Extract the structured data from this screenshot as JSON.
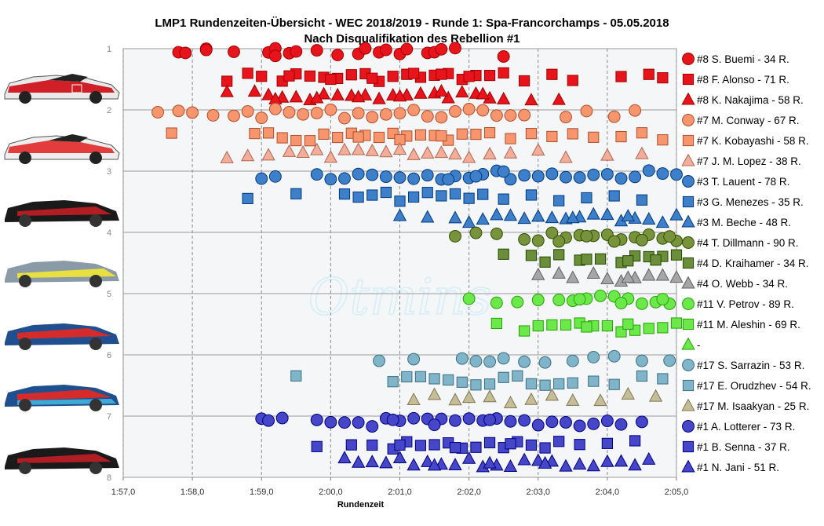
{
  "chart_data": {
    "type": "scatter",
    "title": "LMP1 Rundenzeiten-Übersicht  - WEC 2018/2019  - Runde 1: Spa-Francorchamps  - 05.05.2018",
    "subtitle": "Nach Disqualifikation  des Rebellion  #1",
    "xlabel": "Rundenzeit",
    "ylabel": "",
    "xlim": [
      117,
      125
    ],
    "ylim": [
      1,
      8
    ],
    "y_inverted": true,
    "grid": true,
    "watermark": "Otmins",
    "x_ticks": [
      "1:57,0",
      "1:58,0",
      "1:59,0",
      "2:00,0",
      "2:01,0",
      "2:02,0",
      "2:03,0",
      "2:04,0",
      "2:05,0"
    ],
    "y_ticks": [
      "1",
      "2",
      "3",
      "4",
      "5",
      "6",
      "7",
      "8"
    ],
    "series": [
      {
        "name": "#8 S. Buemi - 34 R.",
        "marker": "circle",
        "color": "#e8141b",
        "y": 1.06,
        "x": [
          117.8,
          117.9,
          118.2,
          118.2,
          118.6,
          119.1,
          119.2,
          119.2,
          119.4,
          119.5,
          119.8,
          120.1,
          120.4,
          120.5,
          120.7,
          120.8,
          121.0,
          121.1,
          121.4,
          121.5,
          121.6,
          121.8,
          122.5
        ]
      },
      {
        "name": "#8 F. Alonso - 71 R.",
        "marker": "square",
        "color": "#e8141b",
        "y": 1.46,
        "x": [
          118.5,
          118.8,
          119.0,
          119.3,
          119.5,
          119.7,
          119.9,
          120.1,
          120.3,
          120.5,
          120.7,
          120.9,
          121.1,
          121.3,
          121.5,
          121.7,
          121.9,
          122.1,
          122.3,
          122.5,
          122.8,
          123.2,
          123.5,
          124.2,
          124.6,
          124.8,
          119.4,
          120.0,
          120.6,
          121.2,
          121.6,
          122.0
        ]
      },
      {
        "name": "#8 K. Nakajima - 58 R.",
        "marker": "triangle",
        "color": "#e8141b",
        "y": 1.77,
        "x": [
          118.5,
          118.9,
          119.1,
          119.3,
          119.5,
          119.7,
          119.9,
          120.1,
          120.3,
          120.5,
          120.7,
          120.9,
          121.1,
          121.3,
          121.5,
          121.7,
          121.9,
          122.1,
          122.3,
          122.5,
          122.9,
          123.3,
          119.2,
          119.8,
          120.4,
          121.0,
          121.6,
          122.2
        ]
      },
      {
        "name": "#7 M. Conway - 67 R.",
        "marker": "circle",
        "color": "#f7956f",
        "y": 2.06,
        "x": [
          117.5,
          117.8,
          118.0,
          118.3,
          118.6,
          118.8,
          119.0,
          119.2,
          119.4,
          119.6,
          119.8,
          120.0,
          120.2,
          120.4,
          120.6,
          120.8,
          121.0,
          121.2,
          121.4,
          121.6,
          121.8,
          122.0,
          122.2,
          122.4,
          122.6,
          122.8,
          123.4,
          123.7,
          124.1,
          124.4
        ]
      },
      {
        "name": "#7 K. Kobayashi - 58 R.",
        "marker": "square",
        "color": "#f7956f",
        "y": 2.45,
        "x": [
          117.7,
          118.9,
          119.1,
          119.3,
          119.5,
          119.7,
          119.9,
          120.1,
          120.3,
          120.5,
          120.7,
          120.9,
          121.1,
          121.3,
          121.5,
          121.7,
          121.9,
          122.1,
          122.3,
          122.6,
          122.9,
          123.2,
          123.5,
          123.8,
          124.2,
          124.5,
          124.8,
          120.4,
          121.0,
          121.6
        ]
      },
      {
        "name": "#7 J. M. Lopez - 38 R.",
        "marker": "triangle",
        "color": "#f4ad98",
        "y": 2.72,
        "x": [
          118.5,
          118.8,
          119.1,
          119.4,
          119.6,
          119.8,
          120.0,
          120.2,
          120.4,
          120.6,
          120.8,
          121.0,
          121.2,
          121.4,
          121.6,
          121.8,
          122.0,
          122.3,
          122.6,
          123.0,
          123.4,
          124.0,
          124.5
        ]
      },
      {
        "name": "#3 T. Lauent - 78 R.",
        "marker": "circle",
        "color": "#3d7fc8",
        "y": 3.06,
        "x": [
          119.0,
          119.2,
          119.8,
          120.0,
          120.2,
          120.4,
          120.6,
          120.8,
          121.0,
          121.2,
          121.4,
          121.6,
          121.8,
          122.0,
          122.2,
          122.4,
          122.6,
          122.8,
          123.0,
          123.2,
          123.4,
          123.6,
          123.8,
          124.0,
          124.2,
          124.4,
          124.6,
          124.8,
          125.0,
          121.7,
          122.1,
          122.5
        ]
      },
      {
        "name": "#3 G. Menezes - 35 R.",
        "marker": "square",
        "color": "#3d7fc8",
        "y": 3.42,
        "x": [
          118.8,
          119.5,
          120.2,
          120.4,
          120.6,
          120.8,
          121.0,
          121.2,
          121.4,
          121.6,
          121.8,
          122.0,
          122.2,
          122.5,
          122.9,
          123.3,
          123.7,
          124.1,
          124.5
        ]
      },
      {
        "name": "#3 M. Beche - 48 R.",
        "marker": "triangle",
        "color": "#3d7fc8",
        "y": 3.78,
        "x": [
          121.0,
          121.4,
          121.8,
          122.0,
          122.2,
          122.4,
          122.6,
          122.8,
          123.0,
          123.2,
          123.4,
          123.6,
          123.8,
          124.0,
          124.2,
          124.4,
          124.6,
          124.8,
          125.0,
          123.5,
          124.3
        ]
      },
      {
        "name": "#4 T. Dillmann - 90 R.",
        "marker": "circle",
        "color": "#77933c",
        "y": 4.08,
        "x": [
          121.8,
          122.1,
          122.4,
          122.8,
          123.0,
          123.2,
          123.4,
          123.6,
          123.8,
          124.0,
          124.2,
          124.4,
          124.6,
          124.8,
          125.0,
          123.3,
          123.7,
          124.1,
          124.5,
          124.9
        ]
      },
      {
        "name": "#4 D. Kraihamer - 34 R.",
        "marker": "square",
        "color": "#6b8e3a",
        "y": 4.42,
        "x": [
          122.5,
          122.9,
          123.3,
          123.6,
          123.9,
          124.2,
          124.4,
          124.6,
          124.8,
          125.0,
          123.1,
          123.7,
          124.3,
          124.7
        ]
      },
      {
        "name": "#4 O. Webb - 34 R.",
        "marker": "triangle",
        "color": "#a6a6a6",
        "y": 4.73,
        "x": [
          123.0,
          123.5,
          123.8,
          124.0,
          124.2,
          124.4,
          124.6,
          124.8,
          125.0,
          124.3,
          123.3
        ]
      },
      {
        "name": "#11 V. Petrov - 89 R.",
        "marker": "circle",
        "color": "#6be84a",
        "y": 5.1,
        "x": [
          122.0,
          122.4,
          122.7,
          123.0,
          123.3,
          123.5,
          123.7,
          123.9,
          124.1,
          124.3,
          124.5,
          124.7,
          124.9,
          123.6,
          124.2,
          124.8
        ]
      },
      {
        "name": "#11 M. Aleshin - 69 R.",
        "marker": "square",
        "color": "#6be84a",
        "y": 5.55,
        "x": [
          122.4,
          122.8,
          123.0,
          123.2,
          123.4,
          123.6,
          123.8,
          124.0,
          124.2,
          124.4,
          124.6,
          124.8,
          125.0,
          123.7,
          124.3
        ]
      },
      {
        "name": "-",
        "marker": "triangle",
        "color": "#6be84a",
        "y": null,
        "x": []
      },
      {
        "name": "#17 S. Sarrazin - 53 R.",
        "marker": "circle",
        "color": "#7fb4c9",
        "y": 6.1,
        "x": [
          120.7,
          121.2,
          121.9,
          122.1,
          122.3,
          122.5,
          122.8,
          123.1,
          123.5,
          123.8,
          124.1,
          124.5,
          124.9
        ]
      },
      {
        "name": "#17 E. Orudzhev - 54 R.",
        "marker": "square",
        "color": "#7fb4c9",
        "y": 6.42,
        "x": [
          119.5,
          120.9,
          121.1,
          121.3,
          121.5,
          121.7,
          121.9,
          122.1,
          122.3,
          122.5,
          122.7,
          122.9,
          123.1,
          123.3,
          123.5,
          123.8,
          124.1,
          124.5,
          124.8
        ]
      },
      {
        "name": "#17 M. Isaakyan - 25 R.",
        "marker": "triangle",
        "color": "#c4bd97",
        "y": 6.72,
        "x": [
          121.2,
          121.5,
          121.8,
          122.0,
          122.3,
          122.6,
          122.9,
          123.2,
          123.5,
          123.9,
          124.3,
          124.7
        ]
      },
      {
        "name": "#1 A. Lotterer - 73 R.",
        "marker": "circle",
        "color": "#4646c8",
        "y": 7.1,
        "x": [
          119.0,
          119.1,
          119.3,
          119.8,
          120.0,
          120.2,
          120.4,
          120.6,
          120.8,
          121.0,
          121.2,
          121.4,
          121.6,
          121.8,
          122.0,
          122.2,
          122.4,
          122.6,
          122.8,
          123.0,
          123.2,
          123.4,
          123.6,
          123.8,
          124.0,
          124.2,
          124.5,
          120.9,
          121.5,
          122.3
        ]
      },
      {
        "name": "#1 B. Senna - 37 R.",
        "marker": "square",
        "color": "#4646c8",
        "y": 7.48,
        "x": [
          119.8,
          120.3,
          120.6,
          120.9,
          121.1,
          121.3,
          121.5,
          121.7,
          121.9,
          122.1,
          122.3,
          122.5,
          122.7,
          122.9,
          123.1,
          123.3,
          123.6,
          124.0,
          124.4,
          121.0,
          121.8,
          122.6
        ]
      },
      {
        "name": "#1 N. Jani - 51 R.",
        "marker": "triangle",
        "color": "#4646c8",
        "y": 7.76,
        "x": [
          120.2,
          120.4,
          120.6,
          120.8,
          121.0,
          121.2,
          121.4,
          121.6,
          121.8,
          122.0,
          122.2,
          122.4,
          122.6,
          122.8,
          123.0,
          123.2,
          123.4,
          123.6,
          123.8,
          124.0,
          124.2,
          124.4,
          124.6,
          121.5,
          122.3,
          123.1
        ]
      }
    ]
  }
}
